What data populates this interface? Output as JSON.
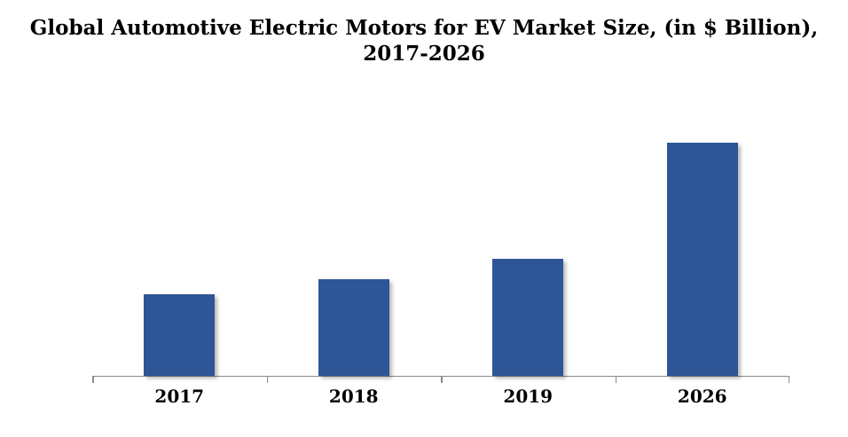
{
  "chart_data": {
    "type": "bar",
    "title": "Global Automotive Electric Motors for EV Market Size, (in $ Billion), 2017-2026",
    "title_lines": [
      "Global Automotive Electric Motors for EV Market Size, (in $ Billion),",
      "2017-2026"
    ],
    "categories": [
      "2017",
      "2018",
      "2019",
      "2026"
    ],
    "values": [
      1.4,
      1.65,
      2.0,
      4.0
    ],
    "values_note": "estimated from bar heights; no value labels or y-axis shown",
    "xlabel": "",
    "ylabel": "",
    "ylim": [
      0,
      5
    ],
    "grid": false,
    "legend": false,
    "y_axis_visible": false,
    "x_axis_visible": true,
    "bar_color": "#2E5596",
    "axis_color": "#8A8A8A",
    "title_color": "#000000",
    "label_color": "#000000",
    "background_color": "#FFFFFF"
  }
}
